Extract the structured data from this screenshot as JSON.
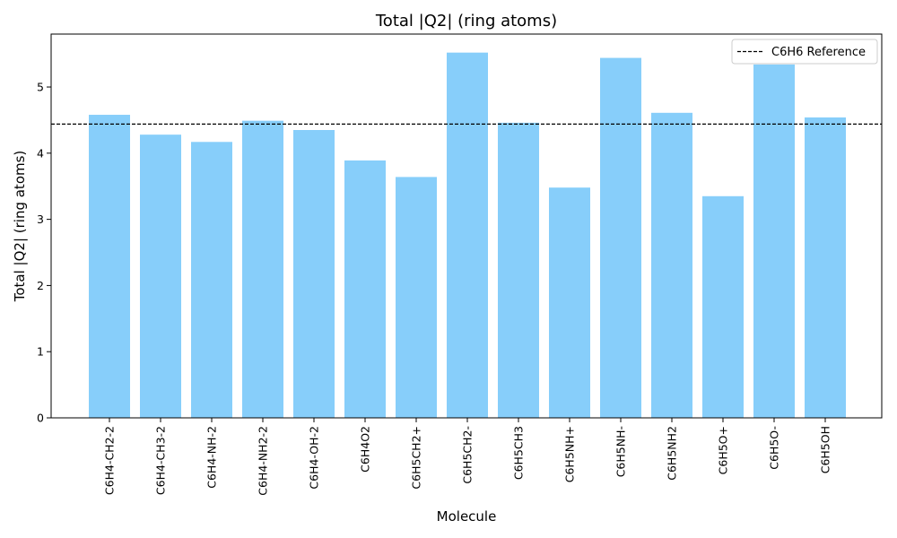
{
  "chart_data": {
    "type": "bar",
    "title": "Total |Q2| (ring atoms)",
    "xlabel": "Molecule",
    "ylabel": "Total |Q2| (ring atoms)",
    "ylim": [
      0,
      5.8
    ],
    "yticks": [
      0,
      1,
      2,
      3,
      4,
      5
    ],
    "grid": false,
    "legend_position": "top-right",
    "bar_color": "#87CEFA",
    "categories": [
      "C6H4-CH2-2",
      "C6H4-CH3-2",
      "C6H4-NH-2",
      "C6H4-NH2-2",
      "C6H4-OH-2",
      "C6H4O2",
      "C6H5CH2+",
      "C6H5CH2-",
      "C6H5CH3",
      "C6H5NH+",
      "C6H5NH-",
      "C6H5NH2",
      "C6H5O+",
      "C6H5O-",
      "C6H5OH"
    ],
    "values": [
      4.58,
      4.28,
      4.17,
      4.49,
      4.35,
      3.89,
      3.64,
      5.52,
      4.46,
      3.48,
      5.44,
      4.61,
      3.35,
      5.34,
      4.54
    ],
    "reference": {
      "label": "C6H6 Reference",
      "value": 4.44,
      "style": "dashed",
      "color": "#000000"
    }
  }
}
